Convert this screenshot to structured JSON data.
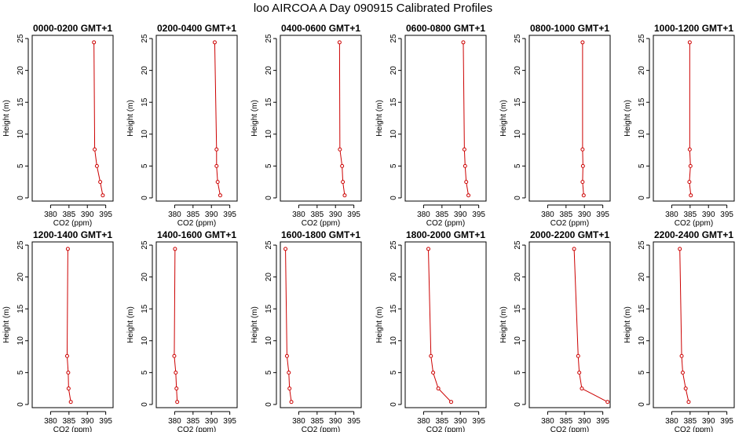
{
  "title": "loo AIRCOA A  Day 090915  Calibrated Profiles",
  "chart_data": {
    "type": "line",
    "xlabel": "CO2 (ppm)",
    "ylabel": "Height (m)",
    "xlim": [
      375,
      397
    ],
    "ylim": [
      -0.5,
      25.5
    ],
    "xticks": [
      380,
      385,
      390,
      395
    ],
    "yticks": [
      0,
      5,
      10,
      15,
      20,
      25
    ],
    "heights": [
      24.4,
      7.6,
      5.0,
      2.5,
      0.4
    ],
    "line_color": "#cc0000",
    "panels": [
      {
        "title": "0000-0200 GMT+1",
        "x": [
          391.8,
          392.0,
          392.6,
          393.5,
          394.2
        ]
      },
      {
        "title": "0200-0400 GMT+1",
        "x": [
          390.9,
          391.4,
          391.4,
          391.7,
          392.4
        ]
      },
      {
        "title": "0400-0600 GMT+1",
        "x": [
          391.1,
          391.2,
          391.8,
          392.0,
          392.5
        ]
      },
      {
        "title": "0600-0800 GMT+1",
        "x": [
          390.8,
          391.1,
          391.3,
          391.6,
          392.2
        ]
      },
      {
        "title": "0800-1000 GMT+1",
        "x": [
          389.5,
          389.5,
          389.6,
          389.5,
          389.8
        ]
      },
      {
        "title": "1000-1200 GMT+1",
        "x": [
          384.9,
          384.9,
          385.1,
          384.8,
          385.2
        ]
      },
      {
        "title": "1200-1400 GMT+1",
        "x": [
          384.7,
          384.5,
          384.8,
          384.9,
          385.5
        ]
      },
      {
        "title": "1400-1600 GMT+1",
        "x": [
          380.1,
          379.9,
          380.3,
          380.5,
          380.7
        ]
      },
      {
        "title": "1600-1800 GMT+1",
        "x": [
          376.4,
          376.8,
          377.3,
          377.5,
          378.0
        ]
      },
      {
        "title": "1800-2000 GMT+1",
        "x": [
          381.3,
          382.0,
          382.6,
          384.0,
          387.5
        ]
      },
      {
        "title": "2000-2200 GMT+1",
        "x": [
          387.2,
          388.3,
          388.6,
          389.3,
          396.3
        ]
      },
      {
        "title": "2200-2400 GMT+1",
        "x": [
          382.2,
          382.7,
          383.0,
          383.8,
          384.6
        ]
      }
    ]
  }
}
